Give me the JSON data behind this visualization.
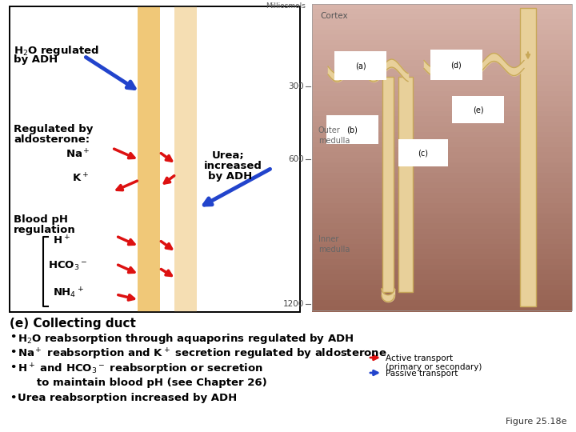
{
  "bg_color": "#ffffff",
  "stripe_color": "#f0c878",
  "stripe_color2": "#f5deb3",
  "cortex_label": "Cortex",
  "milliosmols_label": "Milliosmols",
  "outer_medulla_label": "Outer\nmedulla",
  "inner_medulla_label": "Inner\nmedulla",
  "bottom_title": "(e) Collecting duct",
  "bullets": [
    "H₂O reabsorption through aquaporins regulated by ADH",
    "Na⁺ reabsorption and K⁺ secretion regulated by aldosterone",
    "H⁺ and HCO₃⁻ reabsorption or secretion",
    "   to maintain blood pH (see Chapter 26)",
    "Urea reabsorption increased by ADH"
  ],
  "legend_active": "Active transport",
  "legend_active2": "(primary or secondary)",
  "legend_passive": "Passive transport",
  "figure_label": "Figure 25.18e",
  "arrow_red": "#dd1111",
  "arrow_blue": "#2244cc",
  "text_color": "#000000",
  "tan_fill": "#e8d09a",
  "tan_edge": "#c8a858"
}
